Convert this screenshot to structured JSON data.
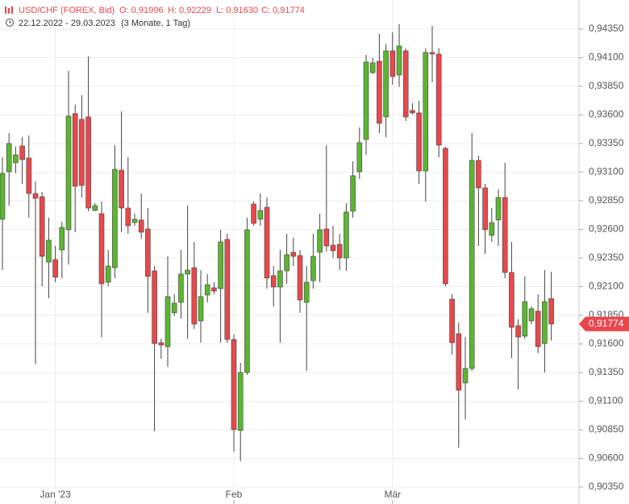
{
  "chart_data": {
    "type": "candlestick",
    "title": "USD/CHF (FOREX, Bid)",
    "ohlc_labels": [
      "O: 0,91996",
      "H: 0,92229",
      "L: 0,91630",
      "C: 0,91774"
    ],
    "date_range": "22.12.2022 - 29.03.2023",
    "period": "(3 Monate, 1 Tag)",
    "up_color": "#5cb531",
    "down_color": "#e8484c",
    "categories": [
      null,
      null,
      null,
      null,
      null,
      null,
      null,
      null,
      "Jan '23",
      null,
      null,
      null,
      null,
      null,
      null,
      null,
      null,
      null,
      null,
      null,
      null,
      null,
      null,
      null,
      null,
      null,
      null,
      null,
      null,
      null,
      null,
      null,
      null,
      null,
      null,
      "Feb",
      null,
      null,
      null,
      null,
      null,
      null,
      null,
      null,
      null,
      null,
      null,
      null,
      null,
      null,
      null,
      null,
      null,
      null,
      null,
      null,
      null,
      null,
      null,
      "Mär",
      null,
      null,
      null,
      null,
      null,
      null,
      null,
      null,
      null,
      null,
      null,
      null,
      null,
      null,
      null,
      null,
      null,
      null,
      null,
      null,
      null,
      null,
      null,
      null
    ],
    "open": [
      0.92689,
      0.93104,
      0.93182,
      0.93329,
      0.93224,
      0.92914,
      0.92886,
      0.92315,
      0.92337,
      0.92421,
      0.92597,
      0.93611,
      0.93562,
      0.93583,
      0.92766,
      0.92738,
      0.92139,
      0.92266,
      0.93118,
      0.92787,
      0.9266,
      0.92682,
      0.92604,
      0.92238,
      0.91611,
      0.91576,
      0.91872,
      0.91963,
      0.9221,
      0.92266,
      0.91801,
      0.92027,
      0.9209,
      0.92083,
      0.92513,
      0.91639,
      0.90844,
      0.91351,
      0.92822,
      0.92689,
      0.92794,
      0.92196,
      0.92097,
      0.92238,
      0.924,
      0.92372,
      0.91963,
      0.92153,
      0.924,
      0.92604,
      0.92463,
      0.9247,
      0.92351,
      0.92759,
      0.93104,
      0.93386,
      0.9397,
      0.94069,
      0.93583,
      0.9416,
      0.93949,
      0.9416,
      0.93639,
      0.93618,
      0.93111,
      0.94146,
      0.94132,
      0.93308,
      0.91991,
      0.91689,
      0.91259,
      0.91386,
      0.93203,
      0.92963,
      0.92548,
      0.92682,
      0.92879,
      0.92224,
      0.91759,
      0.91668,
      0.91801,
      0.91886,
      0.91604,
      0.91996
    ],
    "high": [
      0.93231,
      0.93442,
      0.93322,
      0.93407,
      0.93421,
      0.9302,
      0.92928,
      0.92703,
      0.92456,
      0.92667,
      0.93984,
      0.93689,
      0.93773,
      0.94111,
      0.92829,
      0.92844,
      0.92421,
      0.93336,
      0.93632,
      0.93231,
      0.92738,
      0.92914,
      0.92787,
      0.9228,
      0.91646,
      0.92365,
      0.92034,
      0.92421,
      0.92808,
      0.92491,
      0.92245,
      0.9221,
      0.92139,
      0.92597,
      0.92562,
      0.91682,
      0.91435,
      0.92703,
      0.92844,
      0.92914,
      0.92879,
      0.9228,
      0.92421,
      0.92562,
      0.92527,
      0.92421,
      0.9228,
      0.92562,
      0.92738,
      0.93336,
      0.92632,
      0.92562,
      0.92829,
      0.93196,
      0.93491,
      0.94125,
      0.94097,
      0.94308,
      0.94217,
      0.94322,
      0.94393,
      0.94182,
      0.93703,
      0.93724,
      0.94182,
      0.94379,
      0.94182,
      0.93322,
      0.92034,
      0.91787,
      0.9166,
      0.93442,
      0.93245,
      0.92998,
      0.92787,
      0.92949,
      0.93182,
      0.92491,
      0.91815,
      0.92189,
      0.91928,
      0.92034,
      0.92245,
      0.92229
    ],
    "low": [
      0.92245,
      0.92808,
      0.9309,
      0.92998,
      0.92703,
      0.91421,
      0.92104,
      0.91999,
      0.92139,
      0.92175,
      0.92294,
      0.92576,
      0.92879,
      0.92759,
      0.92759,
      0.9166,
      0.92104,
      0.92175,
      0.92576,
      0.92562,
      0.92632,
      0.9252,
      0.91872,
      0.90837,
      0.9147,
      0.914,
      0.91844,
      0.91822,
      0.91646,
      0.91731,
      0.91611,
      0.91963,
      0.92034,
      0.91611,
      0.91611,
      0.90661,
      0.90576,
      0.9133,
      0.92632,
      0.92632,
      0.92083,
      0.91928,
      0.91611,
      0.92125,
      0.9228,
      0.91872,
      0.91365,
      0.92083,
      0.92139,
      0.92407,
      0.92351,
      0.92245,
      0.92238,
      0.92703,
      0.93041,
      0.93252,
      0.93956,
      0.93442,
      0.93407,
      0.93865,
      0.93844,
      0.93548,
      0.93604,
      0.92998,
      0.92844,
      0.93886,
      0.93231,
      0.92104,
      0.91506,
      0.90696,
      0.90942,
      0.91365,
      0.92456,
      0.92386,
      0.92491,
      0.92456,
      0.92175,
      0.91477,
      0.91203,
      0.91646,
      0.91773,
      0.9152,
      0.91351,
      0.9163
    ],
    "close": [
      0.9309,
      0.93351,
      0.93252,
      0.9321,
      0.92914,
      0.92872,
      0.92365,
      0.92506,
      0.92182,
      0.92618,
      0.9359,
      0.92977,
      0.92984,
      0.92787,
      0.92808,
      0.92125,
      0.9228,
      0.93125,
      0.92787,
      0.92632,
      0.92689,
      0.92576,
      0.92189,
      0.91604,
      0.9159,
      0.92013,
      0.91956,
      0.9221,
      0.92245,
      0.91773,
      0.92013,
      0.92118,
      0.92062,
      0.92491,
      0.91639,
      0.90851,
      0.91351,
      0.92597,
      0.92653,
      0.92766,
      0.92175,
      0.92097,
      0.92238,
      0.92379,
      0.92365,
      0.91984,
      0.92139,
      0.92365,
      0.92597,
      0.92456,
      0.92414,
      0.92351,
      0.92752,
      0.93069,
      0.93358,
      0.94062,
      0.94055,
      0.93527,
      0.9416,
      0.93935,
      0.94203,
      0.93583,
      0.93618,
      0.93111,
      0.94146,
      0.94132,
      0.93336,
      0.92125,
      0.91611,
      0.91196,
      0.91386,
      0.93203,
      0.92963,
      0.92597,
      0.9266,
      0.92879,
      0.92224,
      0.91745,
      0.9166,
      0.9197,
      0.91907,
      0.91576,
      0.9197,
      0.91774
    ],
    "last_price": {
      "value": 0.91774,
      "label": "0,91774"
    },
    "ylim": [
      0.90202,
      0.94604
    ],
    "yticks": [
      {
        "value": 0.9435,
        "label": "0,94350"
      },
      {
        "value": 0.941,
        "label": "0,94100"
      },
      {
        "value": 0.9385,
        "label": "0,93850"
      },
      {
        "value": 0.936,
        "label": "0,93600"
      },
      {
        "value": 0.9335,
        "label": "0,93350"
      },
      {
        "value": 0.931,
        "label": "0,93100"
      },
      {
        "value": 0.9285,
        "label": "0,92850"
      },
      {
        "value": 0.926,
        "label": "0,92600"
      },
      {
        "value": 0.9235,
        "label": "0,92350"
      },
      {
        "value": 0.921,
        "label": "0,92100"
      },
      {
        "value": 0.9185,
        "label": "0,91850"
      },
      {
        "value": 0.916,
        "label": "0,91600"
      },
      {
        "value": 0.9135,
        "label": "0,91350"
      },
      {
        "value": 0.911,
        "label": "0,91100"
      },
      {
        "value": 0.9085,
        "label": "0,90850"
      },
      {
        "value": 0.906,
        "label": "0,90600"
      },
      {
        "value": 0.9035,
        "label": "0,90350"
      }
    ],
    "grid": true
  }
}
